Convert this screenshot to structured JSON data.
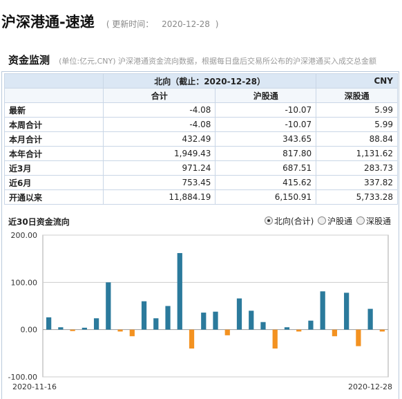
{
  "header": {
    "title": "沪深港通-速递",
    "update_prefix": "( 更新时间：",
    "update_date": "2020-12-28",
    "update_suffix": ")"
  },
  "section": {
    "title": "资金监测",
    "description": "(单位:亿元,CNY)  沪深港通资金流向数据，根据每日盘后交易所公布的沪深港通买入成交总金额"
  },
  "table": {
    "header_title": "北向（截止：2020-12-28）",
    "currency": "CNY",
    "columns": [
      "合计",
      "沪股通",
      "深股通"
    ],
    "rows": [
      {
        "label": "最新",
        "total": "-4.08",
        "sh": "-10.07",
        "sz": "5.99"
      },
      {
        "label": "本周合计",
        "total": "-4.08",
        "sh": "-10.07",
        "sz": "5.99"
      },
      {
        "label": "本月合计",
        "total": "432.49",
        "sh": "343.65",
        "sz": "88.84"
      },
      {
        "label": "本年合计",
        "total": "1,949.43",
        "sh": "817.80",
        "sz": "1,131.62"
      },
      {
        "label": "近3月",
        "total": "971.24",
        "sh": "687.51",
        "sz": "283.73"
      },
      {
        "label": "近6月",
        "total": "753.45",
        "sh": "415.62",
        "sz": "337.82"
      },
      {
        "label": "开通以来",
        "total": "11,884.19",
        "sh": "6,150.91",
        "sz": "5,733.28"
      }
    ]
  },
  "chart_section": {
    "title": "近30日资金流向",
    "options": [
      {
        "label": "北向(合计)",
        "selected": true
      },
      {
        "label": "沪股通",
        "selected": false
      },
      {
        "label": "深股通",
        "selected": false
      }
    ]
  },
  "chart_data": {
    "type": "bar",
    "title": "",
    "xlabel": "",
    "ylabel": "",
    "x_start": "2020-11-16",
    "x_end": "2020-12-28",
    "ylim": [
      -100,
      200
    ],
    "yticks": [
      "200.00",
      "100.00",
      "0.00",
      "-100.00"
    ],
    "ytick_values": [
      200,
      100,
      0,
      -100
    ],
    "grid": true,
    "positive_color": "#2b7a9c",
    "negative_color": "#f39221",
    "values": [
      26,
      5,
      -3,
      4,
      24,
      100,
      -4,
      -14,
      60,
      24,
      50,
      162,
      -40,
      36,
      38,
      -12,
      66,
      40,
      16,
      -40,
      5,
      -4,
      19,
      81,
      -14,
      78,
      -35,
      44,
      -4
    ]
  }
}
